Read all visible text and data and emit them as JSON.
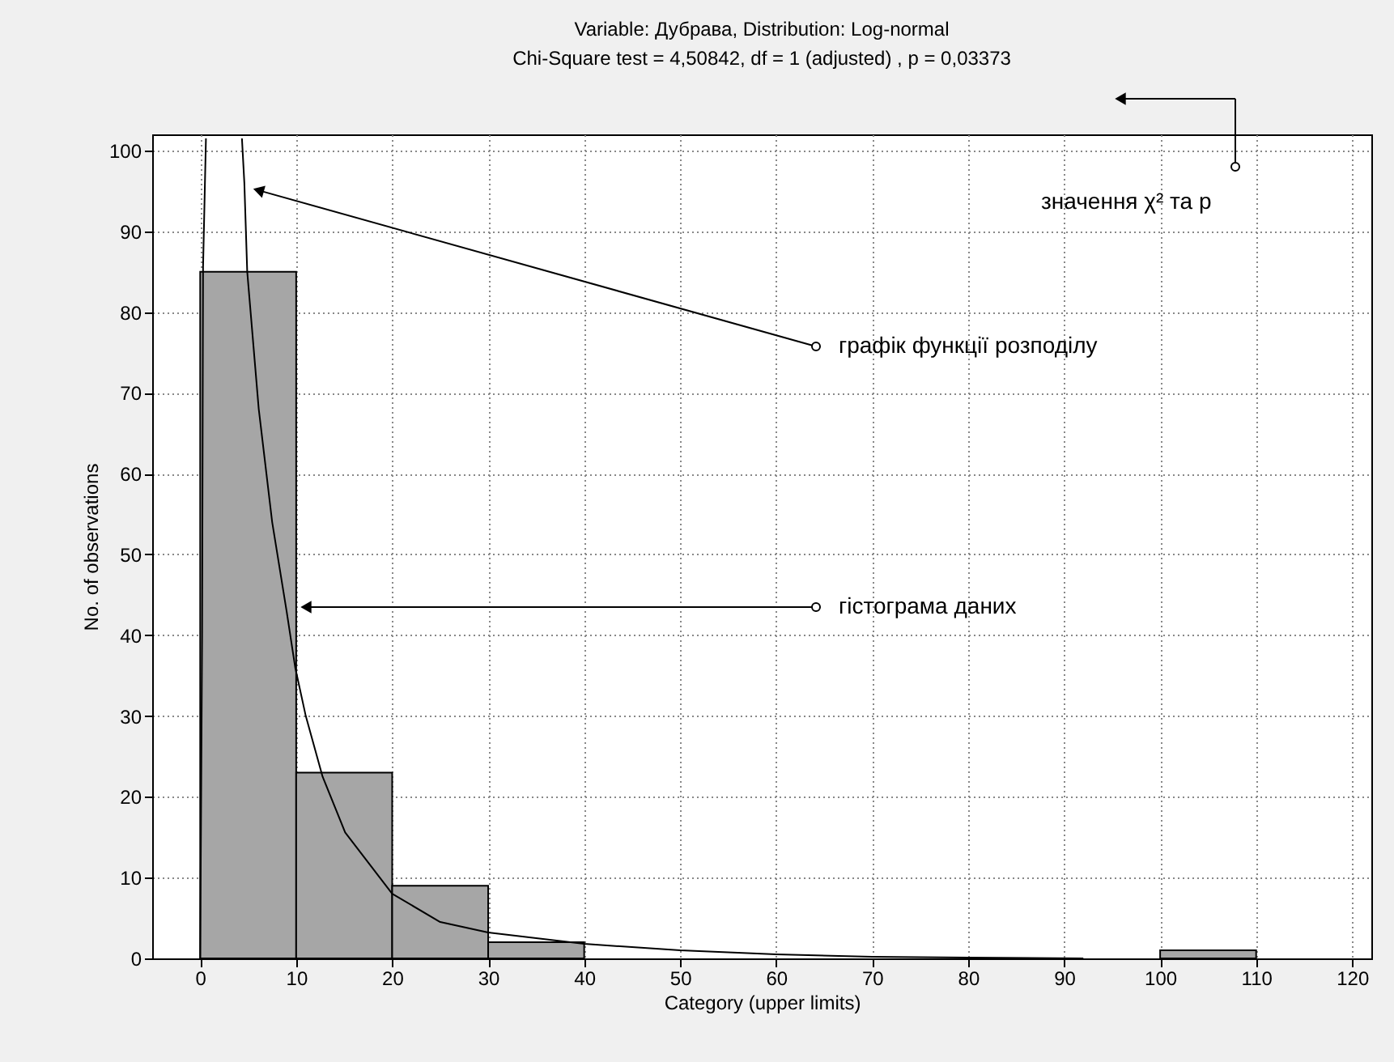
{
  "chart_data": {
    "type": "histogram",
    "title": "Variable: Дубрава, Distribution: Log-normal",
    "subtitle": "Chi-Square test = 4,50842, df = 1 (adjusted) , p = 0,03373",
    "xlabel": "Category (upper limits)",
    "ylabel": "No. of observations",
    "bins": [
      0,
      10,
      20,
      30,
      40,
      50,
      60,
      70,
      80,
      90,
      100,
      110,
      120
    ],
    "values": [
      85,
      23,
      9,
      2,
      0,
      0,
      0,
      0,
      0,
      0,
      1,
      0
    ],
    "color": "#a6a6a6",
    "series": [
      {
        "type": "line",
        "color": "#000000",
        "x": [
          0,
          0.2,
          0.3,
          0.6,
          2,
          4.35,
          4.6,
          4.9,
          6.1,
          7.5,
          9,
          9.9,
          11,
          12.75,
          15.1,
          20,
          25,
          30,
          40,
          50,
          60,
          70,
          80,
          92
        ],
        "values": [
          0,
          40,
          85.6,
          101.5,
          null,
          101.5,
          96,
          85,
          68,
          54,
          43,
          36,
          30,
          22.5,
          15.6,
          8,
          4.5,
          3.2,
          1.8,
          1,
          0.5,
          0.2,
          0.1,
          0
        ]
      }
    ],
    "xlim": [
      -5,
      122
    ],
    "ylim": [
      0,
      102
    ],
    "xticks": [
      0,
      10,
      20,
      30,
      40,
      50,
      60,
      70,
      80,
      90,
      100,
      110,
      120
    ],
    "yticks": [
      0,
      10,
      20,
      30,
      40,
      50,
      60,
      70,
      80,
      90,
      100
    ],
    "grid": true,
    "annotations": [
      {
        "text": "графік функції розподілу",
        "x": 5.1,
        "y": 95.4
      },
      "гістограма даних",
      "значення χ² та p"
    ]
  }
}
